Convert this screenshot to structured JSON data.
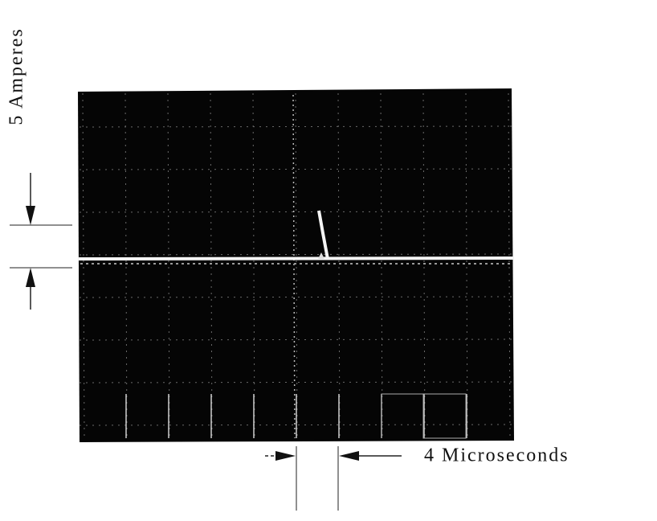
{
  "annotations": {
    "current_scale": "5 Amperes",
    "time_scale": "4 Microseconds"
  }
}
